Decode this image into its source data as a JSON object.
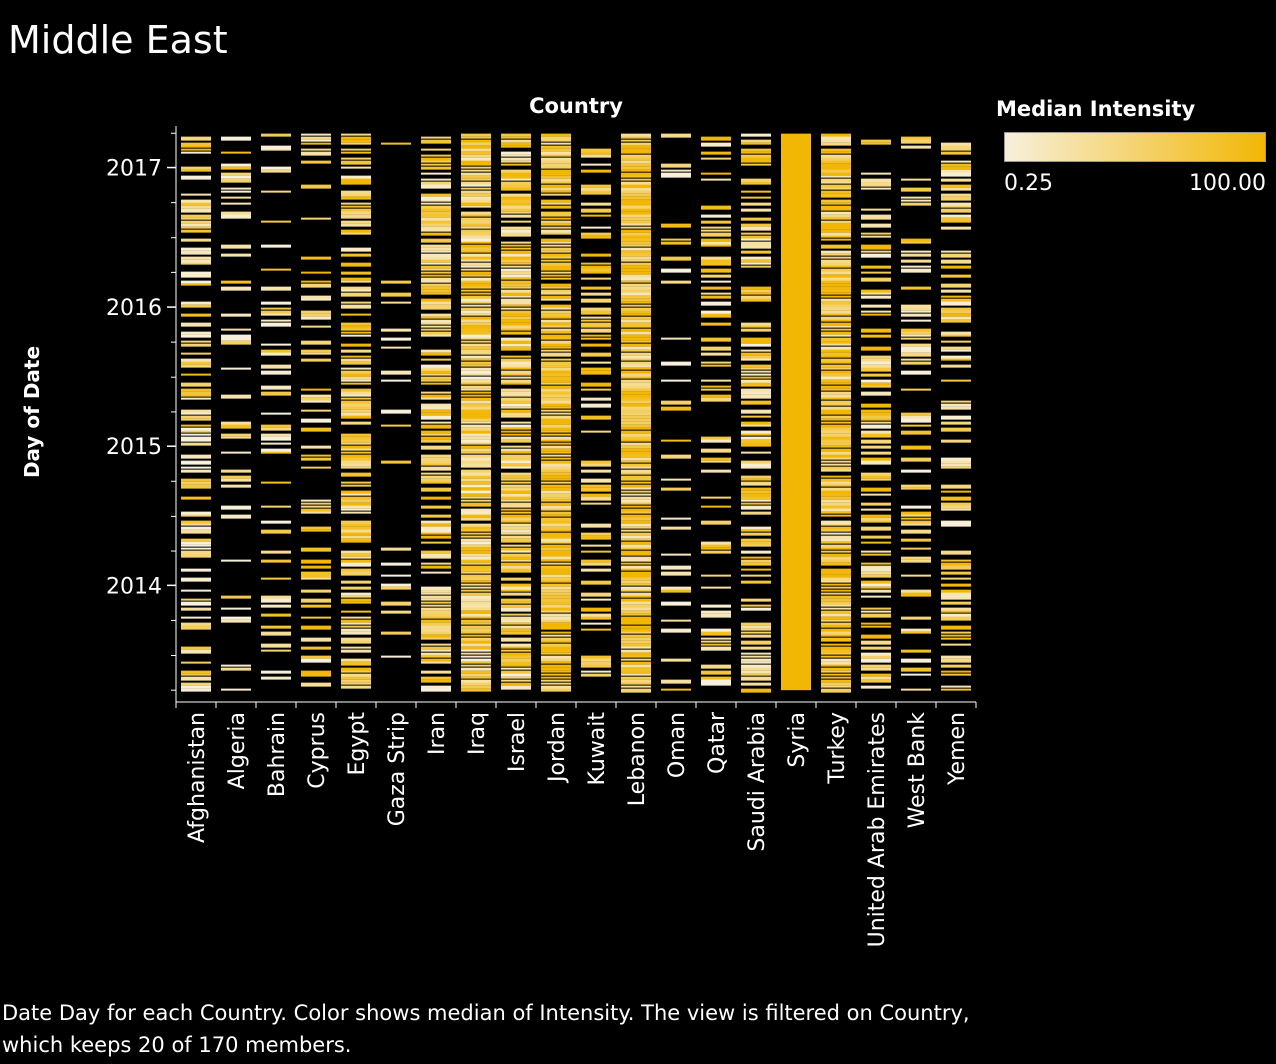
{
  "title": "Middle East",
  "caption": "Date Day for each Country.  Color shows median of Intensity. The view is filtered on Country, which keeps 20 of 170 members.",
  "colors": {
    "background": "#000000",
    "low": "#f7f0dc",
    "high": "#f2b705",
    "axis": "#ffffff"
  },
  "legend": {
    "title": "Median Intensity",
    "min_label": "0.25",
    "max_label": "100.00"
  },
  "chart_data": {
    "type": "heatmap",
    "x_header": "Country",
    "ylabel": "Day of Date",
    "categories": [
      "Afghanistan",
      "Algeria",
      "Bahrain",
      "Cyprus",
      "Egypt",
      "Gaza Strip",
      "Iran",
      "Iraq",
      "Israel",
      "Jordan",
      "Kuwait",
      "Lebanon",
      "Oman",
      "Qatar",
      "Saudi Arabia",
      "Syria",
      "Turkey",
      "United Arab Emirates",
      "West Bank",
      "Yemen"
    ],
    "y_ticks": [
      "2014",
      "2015",
      "2016",
      "2017"
    ],
    "y_range": [
      "2013-03-01",
      "2017-04-20"
    ],
    "date_range_with_events": [
      "2013-04-01",
      "2017-03-31"
    ],
    "color_metric": "median intensity",
    "color_range": [
      0.25,
      100
    ],
    "event_density": {
      "Afghanistan": 0.55,
      "Algeria": 0.2,
      "Bahrain": 0.3,
      "Cyprus": 0.3,
      "Egypt": 0.7,
      "Gaza Strip": 0.15,
      "Iran": 0.7,
      "Iraq": 0.95,
      "Israel": 0.9,
      "Jordan": 0.95,
      "Kuwait": 0.35,
      "Lebanon": 1.0,
      "Oman": 0.2,
      "Qatar": 0.4,
      "Saudi Arabia": 0.6,
      "Syria": 1.0,
      "Turkey": 0.95,
      "United Arab Emirates": 0.55,
      "West Bank": 0.3,
      "Yemen": 0.45
    },
    "typical_intensity": {
      "Afghanistan": 40,
      "Algeria": 40,
      "Bahrain": 35,
      "Cyprus": 55,
      "Egypt": 60,
      "Gaza Strip": 30,
      "Iran": 55,
      "Iraq": 55,
      "Israel": 55,
      "Jordan": 75,
      "Kuwait": 60,
      "Lebanon": 70,
      "Oman": 40,
      "Qatar": 50,
      "Saudi Arabia": 50,
      "Syria": 100,
      "Turkey": 70,
      "United Arab Emirates": 55,
      "West Bank": 45,
      "Yemen": 55
    }
  }
}
